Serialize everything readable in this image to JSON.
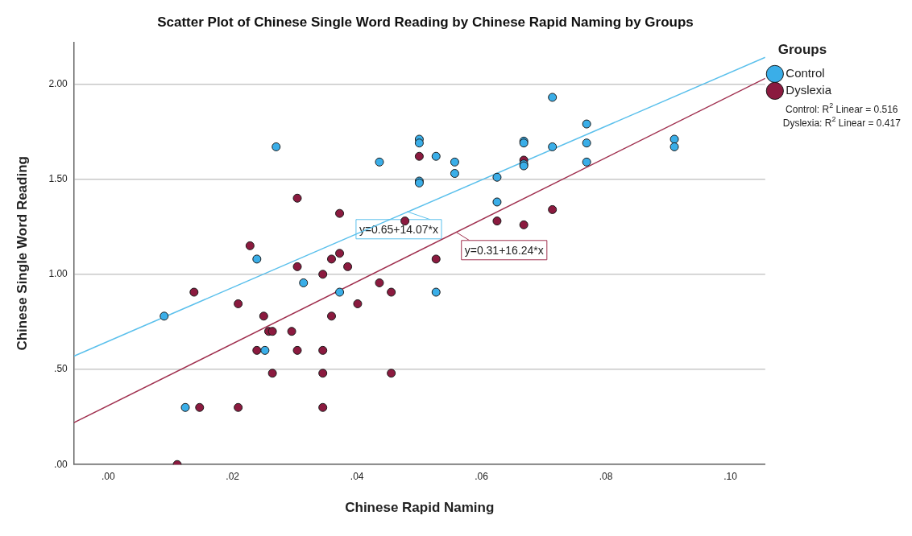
{
  "chart_data": {
    "type": "scatter",
    "title": "Scatter Plot of Chinese Single Word Reading by Chinese Rapid Naming by Groups",
    "xlabel": "Chinese Rapid Naming",
    "ylabel": "Chinese Single Word Reading",
    "legend_title": "Groups",
    "legend": "top right",
    "grid": "y",
    "marker": "circle",
    "xlim": [
      -0.0055,
      0.1056
    ],
    "ylim": [
      0,
      2.22
    ],
    "xticks": [
      {
        "value": 0,
        "label": ".00"
      },
      {
        "value": 0.02,
        "label": ".02"
      },
      {
        "value": 0.04,
        "label": ".04"
      },
      {
        "value": 0.06,
        "label": ".06"
      },
      {
        "value": 0.08,
        "label": ".08"
      },
      {
        "value": 0.1,
        "label": ".10"
      }
    ],
    "yticks": [
      {
        "value": 0,
        "label": ".00"
      },
      {
        "value": 0.5,
        "label": ".50"
      },
      {
        "value": 1,
        "label": "1.00"
      },
      {
        "value": 1.5,
        "label": "1.50"
      },
      {
        "value": 2,
        "label": "2.00"
      }
    ],
    "series": [
      {
        "name": "Control",
        "color": "#3aaee8",
        "x": [
          0.027,
          0.0436,
          0.05,
          0.05,
          0.05,
          0.05,
          0.0239,
          0.0714,
          0.0769,
          0.0527,
          0.0557,
          0.0557,
          0.0668,
          0.0668,
          0.0714,
          0.0769,
          0.0668,
          0.0668,
          0.0769,
          0.091,
          0.091,
          0.0625,
          0.0625,
          0.009,
          0.0314,
          0.0372,
          0.0252,
          0.0124,
          0.0527
        ],
        "values": [
          1.67,
          1.59,
          1.71,
          1.69,
          1.49,
          1.48,
          1.08,
          1.93,
          1.79,
          1.62,
          1.59,
          1.53,
          1.7,
          1.69,
          1.67,
          1.69,
          1.58,
          1.57,
          1.59,
          1.71,
          1.67,
          1.51,
          1.38,
          0.78,
          0.955,
          0.906,
          0.6,
          0.3,
          0.906
        ]
      },
      {
        "name": "Dyslexia",
        "color": "#8b1a3f",
        "x": [
          0.05,
          0.0304,
          0.0372,
          0.0477,
          0.0228,
          0.0372,
          0.0359,
          0.0304,
          0.0385,
          0.0345,
          0.0668,
          0.0625,
          0.0668,
          0.0714,
          0.0527,
          0.0138,
          0.0209,
          0.0436,
          0.0455,
          0.0401,
          0.025,
          0.0359,
          0.0258,
          0.0264,
          0.0295,
          0.0239,
          0.0304,
          0.0345,
          0.0264,
          0.0345,
          0.0455,
          0.0147,
          0.0209,
          0.0345,
          0.0111
        ],
        "values": [
          1.62,
          1.4,
          1.32,
          1.28,
          1.15,
          1.11,
          1.08,
          1.04,
          1.04,
          1.0,
          1.6,
          1.28,
          1.26,
          1.34,
          1.08,
          0.906,
          0.845,
          0.955,
          0.906,
          0.845,
          0.78,
          0.78,
          0.7,
          0.7,
          0.7,
          0.6,
          0.6,
          0.6,
          0.48,
          0.48,
          0.48,
          0.3,
          0.3,
          0.3,
          0
        ]
      },
      {
        "type": "line",
        "marker": "none",
        "color": "#5bc0ec",
        "x": [
          -0.0055,
          0.1056
        ],
        "values": [
          0.57,
          2.14
        ]
      },
      {
        "type": "line",
        "marker": "none",
        "color": "#a0304f",
        "x": [
          -0.0055,
          0.1056
        ],
        "values": [
          0.22,
          2.03
        ]
      }
    ],
    "annotations": [
      {
        "text": "y=0.65+14.07*x",
        "x": 0.048,
        "y": 1.33
      },
      {
        "text": "y=0.31+16.24*x",
        "x": 0.056,
        "y": 1.22
      },
      "Control: R$^{2}$ Linear = 0.516",
      "Dyslexia: R$^{2}$ Linear = 0.417"
    ]
  }
}
